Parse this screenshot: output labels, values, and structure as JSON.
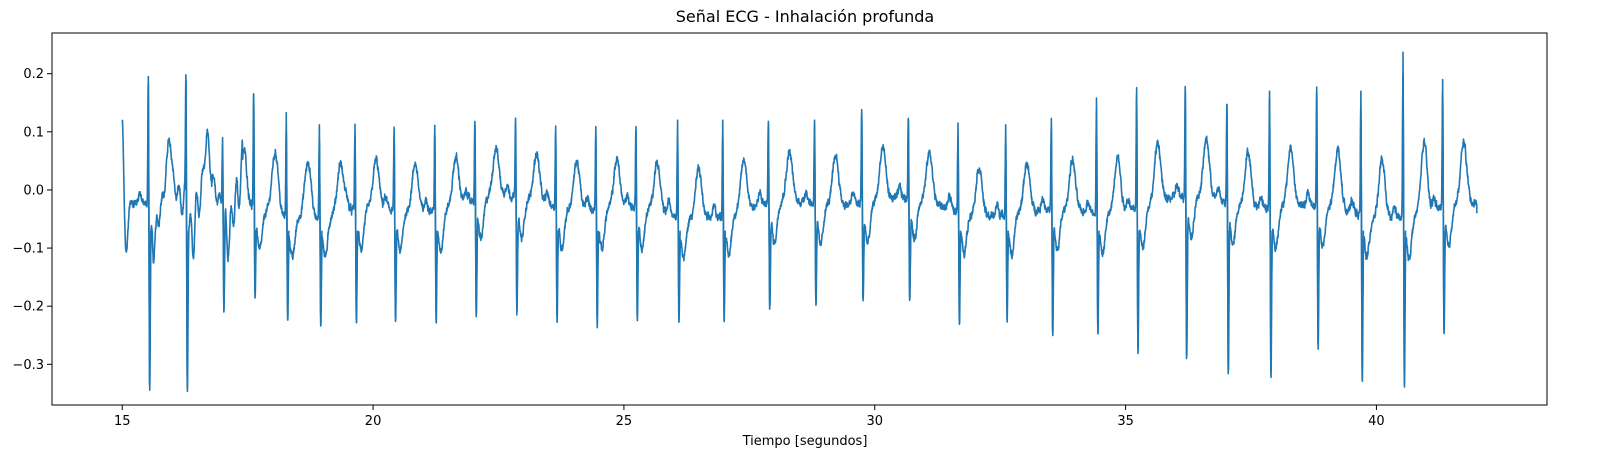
{
  "chart_data": {
    "type": "line",
    "title": "Señal ECG - Inhalación profunda",
    "xlabel": "Tiempo [segundos]",
    "ylabel": "",
    "xlim": [
      13.6,
      43.4
    ],
    "ylim": [
      -0.37,
      0.27
    ],
    "xticks": [
      15,
      20,
      25,
      30,
      35,
      40
    ],
    "xtick_labels": [
      "15",
      "20",
      "25",
      "30",
      "35",
      "40"
    ],
    "yticks": [
      -0.3,
      -0.2,
      -0.1,
      0.0,
      0.1,
      0.2
    ],
    "ytick_labels": [
      "−0.3",
      "−0.2",
      "−0.1",
      "0.0",
      "0.1",
      "0.2"
    ],
    "grid": false,
    "line_color": "#1f77b4",
    "series": [
      {
        "name": "",
        "signal_start_s": 15.0,
        "signal_end_s": 42.0,
        "start_value": 0.11,
        "end_value": -0.04,
        "beats": [
          {
            "t": 15.52,
            "r": 0.195,
            "s": -0.335
          },
          {
            "t": 16.27,
            "r": 0.188,
            "s": -0.32
          },
          {
            "t": 17.0,
            "r": 0.09,
            "s": -0.21
          },
          {
            "t": 17.62,
            "r": 0.165,
            "s": -0.175
          },
          {
            "t": 18.27,
            "r": 0.133,
            "s": -0.202
          },
          {
            "t": 18.93,
            "r": 0.112,
            "s": -0.215
          },
          {
            "t": 19.64,
            "r": 0.113,
            "s": -0.216
          },
          {
            "t": 20.42,
            "r": 0.108,
            "s": -0.218
          },
          {
            "t": 21.23,
            "r": 0.111,
            "s": -0.212
          },
          {
            "t": 22.03,
            "r": 0.11,
            "s": -0.218
          },
          {
            "t": 22.84,
            "r": 0.11,
            "s": -0.215
          },
          {
            "t": 23.64,
            "r": 0.11,
            "s": -0.216
          },
          {
            "t": 24.44,
            "r": 0.109,
            "s": -0.216
          },
          {
            "t": 25.24,
            "r": 0.109,
            "s": -0.21
          },
          {
            "t": 26.07,
            "r": 0.12,
            "s": -0.205
          },
          {
            "t": 26.97,
            "r": 0.12,
            "s": -0.2
          },
          {
            "t": 27.88,
            "r": 0.118,
            "s": -0.205
          },
          {
            "t": 28.8,
            "r": 0.12,
            "s": -0.19
          },
          {
            "t": 29.74,
            "r": 0.138,
            "s": -0.185
          },
          {
            "t": 30.67,
            "r": 0.12,
            "s": -0.19
          },
          {
            "t": 31.66,
            "r": 0.115,
            "s": -0.213
          },
          {
            "t": 32.61,
            "r": 0.112,
            "s": -0.2
          },
          {
            "t": 33.52,
            "r": 0.123,
            "s": -0.24
          },
          {
            "t": 34.42,
            "r": 0.158,
            "s": -0.228
          },
          {
            "t": 35.22,
            "r": 0.176,
            "s": -0.272
          },
          {
            "t": 36.19,
            "r": 0.17,
            "s": -0.29
          },
          {
            "t": 37.02,
            "r": 0.147,
            "s": -0.316
          },
          {
            "t": 37.87,
            "r": 0.17,
            "s": -0.311
          },
          {
            "t": 38.81,
            "r": 0.177,
            "s": -0.265
          },
          {
            "t": 39.69,
            "r": 0.17,
            "s": -0.307
          },
          {
            "t": 40.53,
            "r": 0.237,
            "s": -0.312
          },
          {
            "t": 41.32,
            "r": 0.19,
            "s": -0.24
          }
        ]
      }
    ]
  }
}
